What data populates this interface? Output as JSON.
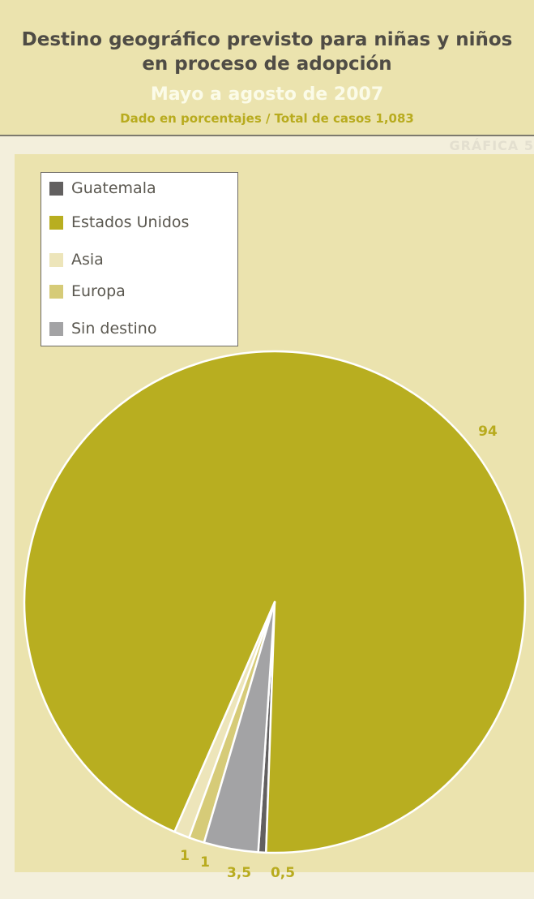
{
  "header": {
    "title_line1": "Destino geográfico previsto para niñas y niños",
    "title_line2": "en proceso de adopción",
    "subtitle": "Mayo a agosto de 2007",
    "note": "Dado en porcentajes / Total de casos 1,083",
    "badge": "GRÁFICA 5"
  },
  "colors": {
    "header_bg": "#ebe3ae",
    "title": "#4f4c45",
    "subtitle": "#fbfbe8",
    "accent": "#b8ab1e"
  },
  "chart_data": {
    "type": "pie",
    "unit": "percent",
    "total_cases": 1083,
    "slices": [
      {
        "name": "Guatemala",
        "value": 0.5,
        "label": "0,5",
        "color": "#626060"
      },
      {
        "name": "Estados Unidos",
        "value": 94,
        "label": "94",
        "color": "#b8ae20"
      },
      {
        "name": "Asia",
        "value": 1,
        "label": "1",
        "color": "#ede5ba"
      },
      {
        "name": "Europa",
        "value": 1,
        "label": "1",
        "color": "#d6cb78"
      },
      {
        "name": "Sin destino",
        "value": 3.5,
        "label": "3,5",
        "color": "#a3a3a5"
      }
    ],
    "legend_placement": "top-left",
    "start_angle_deg": 180,
    "direction": "counterclockwise"
  }
}
